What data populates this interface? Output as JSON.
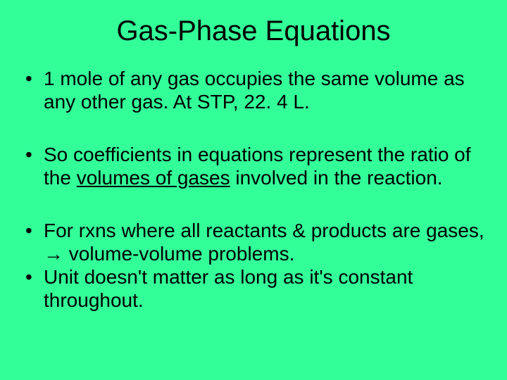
{
  "background_color": "#33ff99",
  "text_color": "#000000",
  "title": {
    "text": "Gas-Phase Equations",
    "fontsize": 40,
    "align": "center"
  },
  "bullets": [
    {
      "segments": [
        {
          "text": "1 mole of any gas occupies the same volume as any other gas.  At STP, 22. 4 L."
        }
      ],
      "gap_after": true
    },
    {
      "segments": [
        {
          "text": "So coefficients in equations represent the ratio of the "
        },
        {
          "text": "volumes of gases",
          "underline": true
        },
        {
          "text": " involved in the reaction."
        }
      ],
      "gap_after": true
    },
    {
      "segments": [
        {
          "text": "For rxns where all reactants & products are gases, "
        },
        {
          "text": "→",
          "arrow": true
        },
        {
          "text": " volume-volume problems."
        }
      ],
      "gap_after": false
    },
    {
      "segments": [
        {
          "text": "Unit doesn't matter as long as it's constant throughout."
        }
      ],
      "gap_after": false
    }
  ],
  "body_fontsize": 28
}
